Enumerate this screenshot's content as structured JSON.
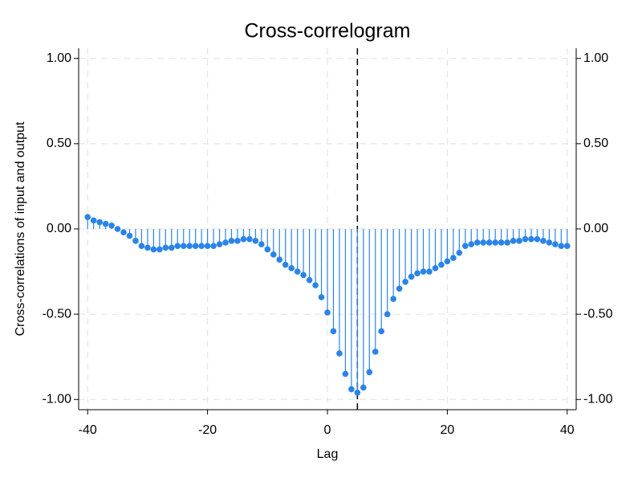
{
  "chart_data": {
    "type": "stem",
    "title": "Cross-correlogram",
    "x_label": "Lag",
    "y_label": "Cross-correlations of input and output",
    "color": "#2a84e8",
    "x": [
      -40,
      -39,
      -38,
      -37,
      -36,
      -35,
      -34,
      -33,
      -32,
      -31,
      -30,
      -29,
      -28,
      -27,
      -26,
      -25,
      -24,
      -23,
      -22,
      -21,
      -20,
      -19,
      -18,
      -17,
      -16,
      -15,
      -14,
      -13,
      -12,
      -11,
      -10,
      -9,
      -8,
      -7,
      -6,
      -5,
      -4,
      -3,
      -2,
      -1,
      0,
      1,
      2,
      3,
      4,
      5,
      6,
      7,
      8,
      9,
      10,
      11,
      12,
      13,
      14,
      15,
      16,
      17,
      18,
      19,
      20,
      21,
      22,
      23,
      24,
      25,
      26,
      27,
      28,
      29,
      30,
      31,
      32,
      33,
      34,
      35,
      36,
      37,
      38,
      39,
      40
    ],
    "values": [
      0.07,
      0.05,
      0.04,
      0.03,
      0.02,
      0.0,
      -0.02,
      -0.04,
      -0.07,
      -0.1,
      -0.11,
      -0.12,
      -0.12,
      -0.11,
      -0.11,
      -0.1,
      -0.1,
      -0.1,
      -0.1,
      -0.1,
      -0.1,
      -0.1,
      -0.09,
      -0.08,
      -0.07,
      -0.07,
      -0.06,
      -0.06,
      -0.07,
      -0.09,
      -0.12,
      -0.15,
      -0.18,
      -0.21,
      -0.23,
      -0.25,
      -0.27,
      -0.3,
      -0.33,
      -0.4,
      -0.49,
      -0.6,
      -0.73,
      -0.85,
      -0.94,
      -0.96,
      -0.93,
      -0.84,
      -0.72,
      -0.6,
      -0.5,
      -0.41,
      -0.35,
      -0.31,
      -0.28,
      -0.26,
      -0.25,
      -0.25,
      -0.23,
      -0.21,
      -0.19,
      -0.17,
      -0.14,
      -0.1,
      -0.09,
      -0.08,
      -0.08,
      -0.08,
      -0.08,
      -0.08,
      -0.08,
      -0.07,
      -0.07,
      -0.06,
      -0.06,
      -0.06,
      -0.07,
      -0.08,
      -0.09,
      -0.1,
      -0.1
    ],
    "xlim": [
      -41.5,
      41.5
    ],
    "ylim": [
      -1.06,
      1.06
    ],
    "xticks": [
      -40,
      -20,
      0,
      20,
      40
    ],
    "yticks": [
      {
        "value": -1,
        "label": "-1.00"
      },
      {
        "value": -0.5,
        "label": "-0.50"
      },
      {
        "value": 0,
        "label": "0.00"
      },
      {
        "value": 0.5,
        "label": "0.50"
      },
      {
        "value": 1,
        "label": "1.00"
      }
    ],
    "reference_line_x": 5,
    "grid": true,
    "right_axis": true
  }
}
